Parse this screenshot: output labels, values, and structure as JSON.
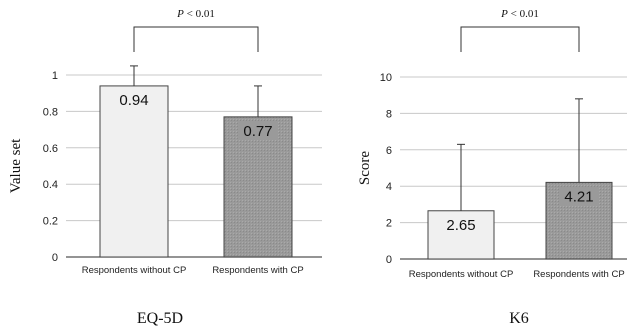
{
  "chart_data": [
    {
      "type": "bar",
      "title": "EQ-5D",
      "xlabel": "",
      "ylabel": "Value set",
      "categories": [
        "Respondents without CP",
        "Respondents with CP"
      ],
      "values": [
        0.94,
        0.77
      ],
      "error_upper": [
        1.05,
        0.94
      ],
      "data_labels": [
        "0.94",
        "0.77"
      ],
      "ylim": [
        0,
        1
      ],
      "yticks": [
        "0",
        "0.2",
        "0.4",
        "0.6",
        "0.8",
        "1"
      ],
      "grid": true,
      "significance": {
        "p_prefix": "P",
        "p_rest": " < 0.01"
      },
      "bar_colors": [
        "#f0f0f0",
        "#9a9a9a"
      ]
    },
    {
      "type": "bar",
      "title": "K6",
      "xlabel": "",
      "ylabel": "Score",
      "categories": [
        "Respondents without CP",
        "Respondents with CP"
      ],
      "values": [
        2.65,
        4.21
      ],
      "error_upper": [
        6.3,
        8.8
      ],
      "data_labels": [
        "2.65",
        "4.21"
      ],
      "ylim": [
        0,
        10
      ],
      "yticks": [
        "0",
        "2",
        "4",
        "6",
        "8",
        "10"
      ],
      "grid": true,
      "significance": {
        "p_prefix": "P",
        "p_rest": " < 0.01"
      },
      "bar_colors": [
        "#f0f0f0",
        "#9a9a9a"
      ]
    }
  ]
}
